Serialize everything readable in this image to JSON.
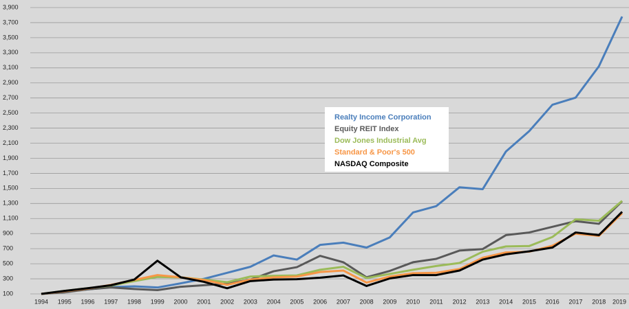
{
  "chart_data": {
    "type": "line",
    "x": [
      1994,
      1995,
      1996,
      1997,
      1998,
      1999,
      2000,
      2001,
      2002,
      2003,
      2004,
      2005,
      2006,
      2007,
      2008,
      2009,
      2010,
      2011,
      2012,
      2013,
      2014,
      2015,
      2016,
      2017,
      2018,
      2019
    ],
    "series": [
      {
        "name": "Realty Income Corporation",
        "color": "#4a7ebb",
        "values": [
          100,
          130,
          160,
          190,
          200,
          185,
          240,
          300,
          380,
          460,
          610,
          555,
          750,
          780,
          715,
          850,
          1180,
          1265,
          1515,
          1490,
          1990,
          2260,
          2610,
          2705,
          3120,
          3780
        ]
      },
      {
        "name": "Equity REIT Index",
        "color": "#595959",
        "values": [
          100,
          120,
          160,
          185,
          165,
          150,
          195,
          215,
          235,
          290,
          400,
          455,
          605,
          520,
          320,
          405,
          520,
          565,
          675,
          695,
          880,
          915,
          990,
          1065,
          1030,
          1330
        ]
      },
      {
        "name": "Dow Jones Industrial Avg",
        "color": "#9bbb59",
        "values": [
          100,
          140,
          175,
          210,
          270,
          325,
          320,
          290,
          255,
          330,
          340,
          345,
          420,
          460,
          310,
          365,
          420,
          470,
          510,
          660,
          730,
          735,
          855,
          1090,
          1070,
          1335
        ]
      },
      {
        "name": "Standard & Poor's 500",
        "color": "#f79646",
        "values": [
          100,
          135,
          170,
          220,
          285,
          350,
          320,
          285,
          220,
          290,
          320,
          330,
          390,
          410,
          250,
          330,
          375,
          380,
          430,
          580,
          650,
          660,
          740,
          900,
          870,
          1170
        ]
      },
      {
        "name": "NASDAQ Composite",
        "color": "#000000",
        "values": [
          100,
          140,
          175,
          215,
          290,
          540,
          320,
          260,
          175,
          270,
          290,
          295,
          315,
          345,
          205,
          305,
          350,
          350,
          410,
          555,
          625,
          665,
          715,
          915,
          880,
          1190
        ]
      }
    ],
    "xlim": [
      1994,
      2019
    ],
    "ylim": [
      100,
      3900
    ],
    "yticks": [
      100,
      300,
      500,
      700,
      900,
      {
        "value": 1100,
        "label": "1,100"
      },
      {
        "value": 1300,
        "label": "1,300"
      },
      {
        "value": 1500,
        "label": "1,500"
      },
      {
        "value": 1700,
        "label": "1,700"
      },
      {
        "value": 1900,
        "label": "1,900"
      },
      {
        "value": 2100,
        "label": "2,100"
      },
      {
        "value": 2300,
        "label": "2,300"
      },
      {
        "value": 2500,
        "label": "2,500"
      },
      {
        "value": 2700,
        "label": "2,700"
      },
      {
        "value": 2900,
        "label": "2,900"
      },
      {
        "value": 3100,
        "label": "3,100"
      },
      {
        "value": 3300,
        "label": "3,300"
      },
      {
        "value": 3500,
        "label": "3,500"
      },
      {
        "value": 3700,
        "label": "3,700"
      },
      {
        "value": 3900,
        "label": "3,900"
      }
    ],
    "grid": true,
    "legend": "center"
  }
}
